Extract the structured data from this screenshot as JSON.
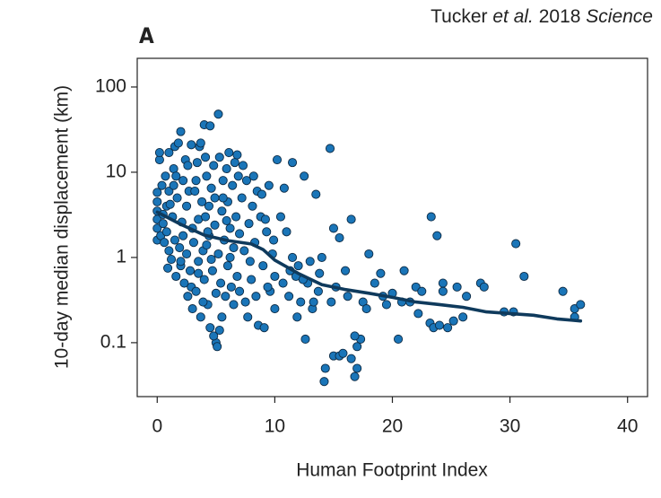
{
  "chart_data": {
    "type": "scatter",
    "panel": "A",
    "attribution": [
      "Tucker",
      "et al.",
      "2018",
      "Science"
    ],
    "xlabel": "Human Footprint Index",
    "ylabel": "10-day median displacement (km)",
    "xlim": [
      -1.7,
      41.7
    ],
    "xticks": [
      0,
      10,
      20,
      30,
      40
    ],
    "ylim": [
      0.0233,
      217
    ],
    "yticks": [
      0.1,
      1,
      10,
      100
    ],
    "ylog": true,
    "grid": false,
    "series": [
      {
        "color": "#1a75b8",
        "edgecolor": "#0d2b45",
        "x": [
          0,
          0,
          0,
          0,
          0,
          0,
          0.2,
          0.2,
          0.3,
          0.4,
          0.5,
          0.5,
          0.6,
          0.7,
          0.8,
          0.8,
          0.9,
          1.0,
          1.0,
          1.0,
          1.2,
          1.3,
          1.4,
          1.5,
          1.5,
          1.6,
          1.7,
          1.8,
          1.9,
          2.0,
          2.0,
          2.1,
          2.2,
          2.3,
          2.4,
          2.5,
          2.5,
          2.6,
          2.7,
          2.8,
          2.9,
          3.0,
          3.0,
          1.6,
          2.2,
          2.6,
          1.4,
          2.9,
          1.1,
          2.0,
          3.1,
          3.2,
          3.3,
          3.4,
          3.5,
          3.5,
          3.6,
          3.7,
          3.8,
          3.9,
          4.0,
          4.0,
          4.1,
          4.2,
          4.3,
          4.4,
          4.5,
          4.5,
          4.6,
          4.7,
          4.8,
          4.9,
          5.0,
          5.0,
          3.3,
          3.7,
          4.2,
          4.6,
          3.9,
          4.4,
          4.1,
          4.8,
          3.5,
          4.3,
          4.9,
          5.1,
          5.2,
          5.2,
          5.3,
          5.4,
          5.5,
          5.5,
          5.6,
          5.7,
          5.8,
          5.9,
          6.0,
          6.0,
          6.1,
          6.2,
          6.3,
          6.4,
          6.5,
          6.5,
          6.6,
          6.7,
          6.8,
          6.9,
          7.0,
          7.0,
          5.3,
          5.6,
          6.2,
          6.8,
          5.9,
          7.2,
          7.4,
          7.5,
          7.6,
          7.8,
          8.0,
          8.1,
          8.3,
          8.5,
          8.6,
          8.8,
          9.0,
          9.1,
          9.3,
          9.5,
          9.6,
          9.8,
          10.0,
          10.0,
          7.3,
          7.9,
          8.4,
          8.9,
          9.4,
          9.9,
          7.7,
          8.2,
          9.2,
          10.2,
          10.5,
          10.7,
          11.0,
          11.2,
          11.5,
          11.5,
          11.8,
          12.0,
          12.2,
          12.5,
          12.6,
          12.8,
          13.0,
          13.2,
          13.5,
          13.7,
          14.0,
          11.3,
          12.4,
          13.3,
          10.8,
          11.9,
          13.8,
          14.7,
          15,
          15.5,
          16.5,
          14.3,
          14.2,
          15.0,
          15.5,
          15.8,
          16.5,
          16.8,
          17.0,
          17.0,
          17.3,
          16.8,
          16,
          18,
          19,
          21,
          22,
          23.3,
          23.8,
          24.3,
          24.3,
          25.5,
          23.2,
          23.5,
          24.0,
          24.7,
          25.2,
          26.0,
          26.3,
          27.5,
          27.8,
          29.5,
          30.3,
          30.5,
          31.2,
          34.5,
          35.5,
          35.5,
          36,
          20.5,
          15.2,
          16.2,
          17.5,
          18.5,
          19.5,
          20,
          21.5,
          22.5,
          14.8,
          17.8,
          19.2,
          20.8,
          22.2
        ],
        "values": [
          1.6,
          2.2,
          2.8,
          3.5,
          4.5,
          5.8,
          14,
          17,
          1.8,
          7,
          2.5,
          3.2,
          1.5,
          9,
          2,
          4,
          0.75,
          6,
          1.2,
          17,
          0.95,
          3,
          11,
          1.6,
          20,
          0.6,
          5,
          22,
          1.3,
          30,
          0.8,
          2.6,
          8,
          0.5,
          14,
          1.1,
          4,
          0.35,
          6,
          0.7,
          21,
          2.2,
          0.25,
          9,
          1.8,
          12,
          7,
          0.45,
          4.2,
          0.9,
          1.5,
          6,
          0.4,
          13,
          2.8,
          0.9,
          20,
          0.2,
          4.5,
          1.2,
          36,
          0.55,
          3,
          9,
          0.28,
          1.8,
          35,
          0.15,
          6.5,
          0.7,
          12,
          2.4,
          0.1,
          0.38,
          8,
          22,
          1.4,
          0.95,
          0.3,
          4,
          15,
          0.12,
          0.65,
          2,
          5,
          0.09,
          48,
          1.1,
          15,
          0.5,
          3.5,
          0.2,
          8,
          1.6,
          0.35,
          11,
          4.5,
          0.8,
          17,
          2.2,
          0.45,
          7,
          1.3,
          0.28,
          13,
          3,
          0.6,
          9,
          1.9,
          0.4,
          0.14,
          5,
          1,
          16,
          2.7,
          5,
          1.2,
          0.3,
          8,
          2.5,
          0.55,
          4,
          1.5,
          6,
          0.16,
          3,
          0.8,
          0.15,
          2,
          7,
          0.4,
          1.1,
          0.6,
          0.25,
          12,
          0.9,
          0.35,
          5.5,
          0.45,
          1.6,
          0.2,
          9,
          2.8,
          14,
          3,
          0.5,
          2,
          0.35,
          13,
          1,
          0.6,
          0.8,
          0.3,
          9,
          0.11,
          0.5,
          0.9,
          0.25,
          5.5,
          0.4,
          1,
          0.7,
          0.55,
          0.3,
          6.5,
          0.2,
          0.65,
          19,
          2.2,
          1.7,
          2.8,
          0.05,
          0.035,
          0.07,
          0.07,
          0.075,
          0.065,
          0.04,
          0.05,
          0.09,
          0.11,
          0.12,
          0.7,
          1.1,
          0.65,
          0.7,
          0.45,
          3,
          1.8,
          0.5,
          0.4,
          0.45,
          0.17,
          0.15,
          0.16,
          0.15,
          0.18,
          0.2,
          0.35,
          0.5,
          0.45,
          0.23,
          0.23,
          1.45,
          0.6,
          0.4,
          0.2,
          0.25,
          0.28,
          0.11,
          0.45,
          0.35,
          0.3,
          0.5,
          0.28,
          0.38,
          0.3,
          0.4,
          0.3,
          0.25,
          0.35,
          0.3,
          0.22
        ]
      }
    ],
    "trend": {
      "color": "#0f3a5c",
      "x": [
        0,
        2,
        4,
        6,
        8,
        9,
        10,
        12,
        14,
        16,
        18,
        20,
        22,
        24,
        26,
        28,
        30,
        32,
        34,
        36
      ],
      "values": [
        3.4,
        2.45,
        1.83,
        1.58,
        1.44,
        1.24,
        0.93,
        0.65,
        0.48,
        0.42,
        0.38,
        0.34,
        0.3,
        0.28,
        0.26,
        0.23,
        0.22,
        0.21,
        0.19,
        0.18
      ]
    }
  }
}
